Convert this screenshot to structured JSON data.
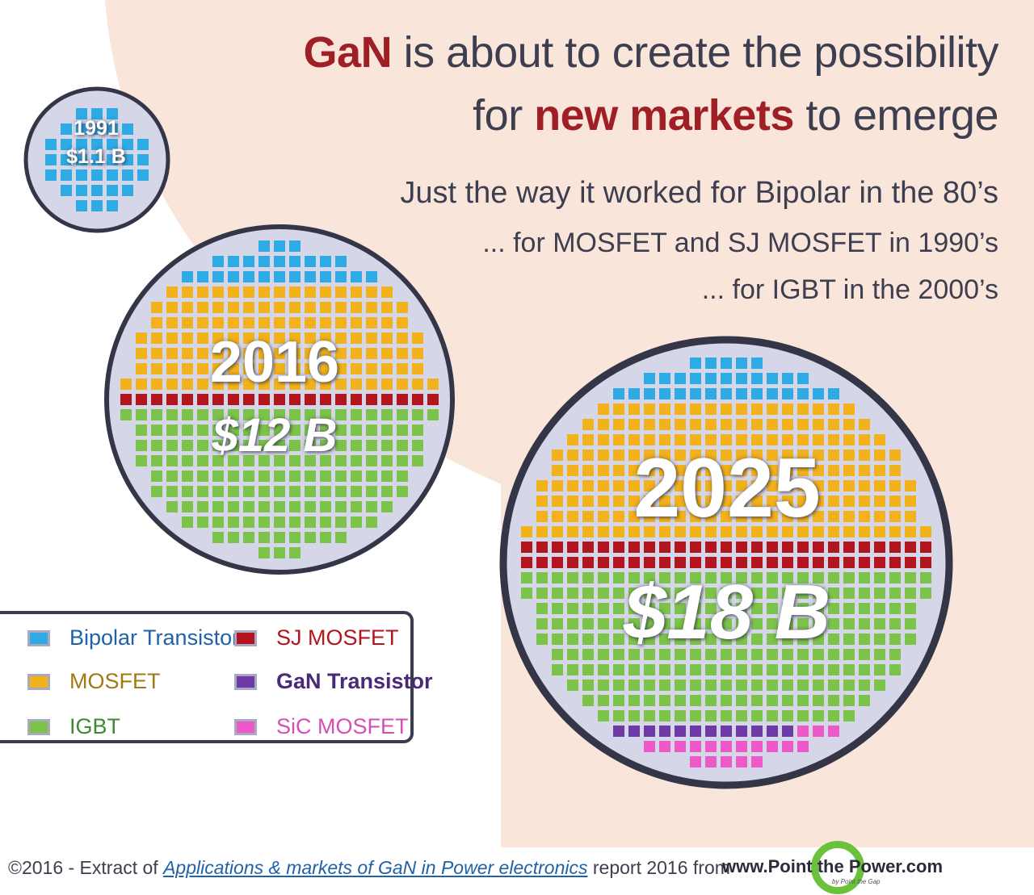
{
  "headline": {
    "line1_highlight": "GaN",
    "line1_rest": " is about to create the possibility",
    "line2_start": "for ",
    "line2_highlight": "new markets",
    "line2_end": " to emerge"
  },
  "subheadlines": [
    "Just the way it worked for Bipolar in the 80’s",
    "... for MOSFET and SJ MOSFET in 1990’s",
    "... for IGBT in the 2000’s"
  ],
  "wafers": [
    {
      "year": "1991",
      "value": "$1.1 B"
    },
    {
      "year": "2016",
      "value": "$12 B"
    },
    {
      "year": "2025",
      "value": "$18 B"
    }
  ],
  "legend": [
    {
      "label": "Bipolar Transistor",
      "color": "#2eaae4",
      "text_color": "#1f62a8",
      "bold": false
    },
    {
      "label": "SJ MOSFET",
      "color": "#b3151f",
      "text_color": "#b3151f",
      "bold": false
    },
    {
      "label": "MOSFET",
      "color": "#f2b21c",
      "text_color": "#a07a12",
      "bold": false
    },
    {
      "label": "GaN Transistor",
      "color": "#6e3aa6",
      "text_color": "#4a2a78",
      "bold": true
    },
    {
      "label": "IGBT",
      "color": "#7cc34a",
      "text_color": "#3f8a2e",
      "bold": false
    },
    {
      "label": "SiC MOSFET",
      "color": "#ee59c8",
      "text_color": "#d64fb4",
      "bold": false
    }
  ],
  "colors": {
    "bipolar": "#2eaae4",
    "mosfet": "#f2b21c",
    "igbt": "#7cc34a",
    "sj_mosfet": "#b3151f",
    "gan": "#6e3aa6",
    "sic": "#ee59c8",
    "wafer_fill": "#d5d7e8",
    "wafer_rim": "#343647",
    "background_blob": "#fae5da"
  },
  "footer": {
    "prefix": "©2016 - Extract of ",
    "link": "Applications & markets of GaN in Power electronics",
    "suffix": " report 2016 from",
    "brand": "www.Point the Power.com",
    "brand_sub": "by Point the Gap"
  }
}
